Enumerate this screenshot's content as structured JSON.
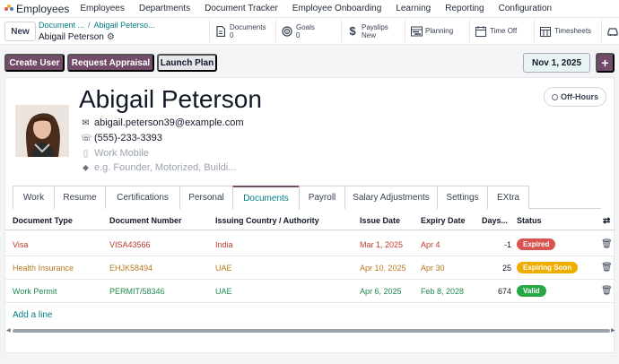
{
  "topnav": {
    "app_name": "Employees",
    "menu": [
      "Employees",
      "Departments",
      "Document Tracker",
      "Employee Onboarding",
      "Learning",
      "Reporting",
      "Configuration"
    ]
  },
  "control": {
    "new_label": "New",
    "breadcrumb_parent1": "Document ...",
    "breadcrumb_sep": "/",
    "breadcrumb_parent2": "Abigail Peterso...",
    "breadcrumb_current": "Abigail Peterson"
  },
  "smart_buttons": [
    {
      "icon": "document-icon",
      "label": "Documents",
      "value": "0"
    },
    {
      "icon": "goals-icon",
      "label": "Goals",
      "value": "0"
    },
    {
      "icon": "dollar-icon",
      "label": "Payslips",
      "value": "New"
    },
    {
      "icon": "planning-icon",
      "label": "Planning",
      "value": ""
    },
    {
      "icon": "calendar-icon",
      "label": "Time Off",
      "value": ""
    },
    {
      "icon": "timesheet-icon",
      "label": "Timesheets",
      "value": ""
    }
  ],
  "actions": {
    "create_user": "Create User",
    "request_appraisal": "Request Appraisal",
    "launch_plan": "Launch Plan",
    "date": "Nov 1, 2025",
    "plus": "+"
  },
  "employee": {
    "name": "Abigail Peterson",
    "status": "Off-Hours",
    "email": "abigail.peterson39@example.com",
    "phone": "(555)-233-3393",
    "mobile_placeholder": "Work Mobile",
    "tags_placeholder": "e.g. Founder, Motorized, Buildi..."
  },
  "tabs": [
    {
      "label": "Work",
      "active": false
    },
    {
      "label": "Resume",
      "active": false
    },
    {
      "label": "Certifications",
      "active": false
    },
    {
      "label": "Personal",
      "active": false
    },
    {
      "label": "Documents",
      "active": true
    },
    {
      "label": "Payroll",
      "active": false
    },
    {
      "label": "Salary Adjustments",
      "active": false
    },
    {
      "label": "Settings",
      "active": false
    },
    {
      "label": "EXtra",
      "active": false
    }
  ],
  "table": {
    "headers": [
      "Document Type",
      "Document Number",
      "Issuing Country / Authority",
      "Issue Date",
      "Expiry Date",
      "Days...",
      "Status"
    ],
    "rows": [
      {
        "type": "Visa",
        "number": "VISA43566",
        "country": "India",
        "issue": "Mar 1, 2025",
        "expiry": "Apr 4",
        "days": "-1",
        "status": "Expired",
        "row_color": "#c0392b",
        "status_color": "#d9534f"
      },
      {
        "type": "Health Insurance",
        "number": "EHJK58494",
        "country": "UAE",
        "issue": "Apr 10, 2025",
        "expiry": "Apr 30",
        "days": "25",
        "status": "Expiring Soon",
        "row_color": "#b7791f",
        "status_color": "#f0ad00"
      },
      {
        "type": "Work Permit",
        "number": "PERMIT/58346",
        "country": "UAE",
        "issue": "Apr 6, 2025",
        "expiry": "Feb 8, 2028",
        "days": "674",
        "status": "Valid",
        "row_color": "#1e8a4c",
        "status_color": "#28a745"
      }
    ],
    "add_line": "Add a line"
  },
  "colors": {
    "brand": "#714b67",
    "link": "#017e84"
  }
}
